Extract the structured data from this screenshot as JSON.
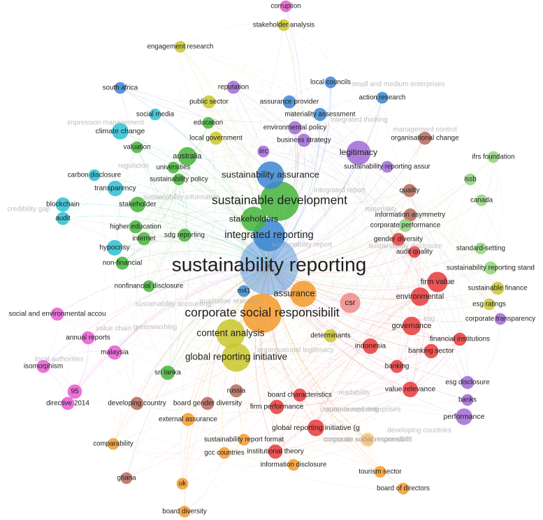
{
  "clusters": {
    "red": "#e8383a",
    "green": "#45b43a",
    "blue": "#3b86d2",
    "yellow": "#c9c72b",
    "purple": "#a06ad6",
    "cyan": "#2cbfd2",
    "orange": "#f39a2c",
    "brown": "#b5685a",
    "pink": "#e85bd2",
    "lightgreen": "#8fd37a",
    "salmon": "#f08a8a",
    "teal": "#4aa6a6"
  },
  "hub": "sustainability reporting",
  "network": {
    "nodes": [
      {
        "id": "sustainability reporting",
        "cluster": "blue",
        "weight": 1.0
      },
      {
        "id": "sustainable development",
        "cluster": "green",
        "weight": 0.45
      },
      {
        "id": "corporate social responsibilit",
        "cluster": "orange",
        "weight": 0.45
      },
      {
        "id": "integrated reporting",
        "cluster": "blue",
        "weight": 0.3
      },
      {
        "id": "sustainability assurance",
        "cluster": "blue",
        "weight": 0.22
      },
      {
        "id": "content analysis",
        "cluster": "yellow",
        "weight": 0.24
      },
      {
        "id": "global reporting initiative",
        "cluster": "yellow",
        "weight": 0.24
      },
      {
        "id": "assurance",
        "cluster": "orange",
        "weight": 0.2
      },
      {
        "id": "stakeholders",
        "cluster": "green",
        "weight": 0.18
      },
      {
        "id": "legitimacy",
        "cluster": "purple",
        "weight": 0.17
      },
      {
        "id": "firm value",
        "cluster": "red",
        "weight": 0.12
      },
      {
        "id": "environmental",
        "cluster": "red",
        "weight": 0.1
      },
      {
        "id": "governance",
        "cluster": "red",
        "weight": 0.1
      },
      {
        "id": "csr",
        "cluster": "salmon",
        "weight": 0.12
      },
      {
        "id": "australia",
        "cluster": "green",
        "weight": 0.1
      },
      {
        "id": "climate change",
        "cluster": "cyan",
        "weight": 0.08
      },
      {
        "id": "performance",
        "cluster": "purple",
        "weight": 0.08
      },
      {
        "id": "value relevance",
        "cluster": "red",
        "weight": 0.07
      },
      {
        "id": "indonesia",
        "cluster": "red",
        "weight": 0.07
      },
      {
        "id": "banking sector",
        "cluster": "red",
        "weight": 0.06
      },
      {
        "id": "global reporting initiative (g",
        "cluster": "red",
        "weight": 0.08
      },
      {
        "id": "corporate social responsibilit (2)",
        "label": "corporate social responsibilit",
        "cluster": "orange",
        "weight": 0.06,
        "faded": true
      },
      {
        "id": "stakeholder",
        "cluster": "green",
        "weight": 0.07
      },
      {
        "id": "transparency",
        "cluster": "cyan",
        "weight": 0.07
      },
      {
        "id": "hypocrisy",
        "cluster": "cyan",
        "weight": 0.07
      },
      {
        "id": "blockchain",
        "cluster": "cyan",
        "weight": 0.06
      },
      {
        "id": "audit",
        "cluster": "cyan",
        "weight": 0.05
      },
      {
        "id": "malaysia",
        "cluster": "pink",
        "weight": 0.06
      },
      {
        "id": "sri lanka",
        "cluster": "green",
        "weight": 0.06
      },
      {
        "id": "95",
        "cluster": "pink",
        "weight": 0.06
      },
      {
        "id": "directive 2014",
        "cluster": "pink",
        "weight": 0.05
      },
      {
        "id": "isomorphism",
        "cluster": "pink",
        "weight": 0.05
      },
      {
        "id": "annual reports",
        "cluster": "pink",
        "weight": 0.05
      },
      {
        "id": "social and environmental accou",
        "cluster": "pink",
        "weight": 0.05
      },
      {
        "id": "developing country",
        "cluster": "brown",
        "weight": 0.05
      },
      {
        "id": "board gender diversity",
        "cluster": "brown",
        "weight": 0.05
      },
      {
        "id": "external assurance",
        "cluster": "orange",
        "weight": 0.05
      },
      {
        "id": "firm performance",
        "cluster": "red",
        "weight": 0.06
      },
      {
        "id": "board characteristics",
        "cluster": "red",
        "weight": 0.05
      },
      {
        "id": "russia",
        "cluster": "brown",
        "weight": 0.05
      },
      {
        "id": "institutional theory",
        "cluster": "red",
        "weight": 0.06
      },
      {
        "id": "information disclosure",
        "cluster": "orange",
        "weight": 0.04
      },
      {
        "id": "tourism sector",
        "cluster": "orange",
        "weight": 0.04
      },
      {
        "id": "board of directors",
        "cluster": "orange",
        "weight": 0.04
      },
      {
        "id": "board diversity",
        "cluster": "orange",
        "weight": 0.04
      },
      {
        "id": "uk",
        "cluster": "orange",
        "weight": 0.04
      },
      {
        "id": "ghana",
        "cluster": "brown",
        "weight": 0.04
      },
      {
        "id": "comparability",
        "cluster": "orange",
        "weight": 0.04
      },
      {
        "id": "gcc countries",
        "cluster": "orange",
        "weight": 0.04
      },
      {
        "id": "sustainability report format",
        "cluster": "orange",
        "weight": 0.04
      },
      {
        "id": "banks",
        "cluster": "purple",
        "weight": 0.04
      },
      {
        "id": "esg disclosure",
        "cluster": "purple",
        "weight": 0.05
      },
      {
        "id": "banking",
        "cluster": "red",
        "weight": 0.05
      },
      {
        "id": "financial institutions",
        "cluster": "red",
        "weight": 0.05
      },
      {
        "id": "corporate transparency",
        "cluster": "purple",
        "weight": 0.04
      },
      {
        "id": "esg ratings",
        "cluster": "yellow",
        "weight": 0.04
      },
      {
        "id": "sustainable finance",
        "cluster": "yellow",
        "weight": 0.05
      },
      {
        "id": "sustainability reporting stand",
        "cluster": "lightgreen",
        "weight": 0.05
      },
      {
        "id": "standard-setting",
        "cluster": "lightgreen",
        "weight": 0.04
      },
      {
        "id": "canada",
        "cluster": "lightgreen",
        "weight": 0.04
      },
      {
        "id": "issb",
        "cluster": "lightgreen",
        "weight": 0.04
      },
      {
        "id": "ifrs foundation",
        "cluster": "lightgreen",
        "weight": 0.04
      },
      {
        "id": "organisational change",
        "cluster": "brown",
        "weight": 0.05
      },
      {
        "id": "action research",
        "cluster": "blue",
        "weight": 0.04
      },
      {
        "id": "local councils",
        "cluster": "blue",
        "weight": 0.04
      },
      {
        "id": "quality",
        "cluster": "brown",
        "weight": 0.05
      },
      {
        "id": "information asymmetry",
        "cluster": "brown",
        "weight": 0.05
      },
      {
        "id": "corporate performance",
        "cluster": "lightgreen",
        "weight": 0.05
      },
      {
        "id": "gender diversity",
        "cluster": "red",
        "weight": 0.05
      },
      {
        "id": "audit quality",
        "cluster": "red",
        "weight": 0.04
      },
      {
        "id": "determinants",
        "cluster": "yellow",
        "weight": 0.05
      },
      {
        "id": "corruption",
        "cluster": "pink",
        "weight": 0.04
      },
      {
        "id": "stakeholder analysis",
        "cluster": "yellow",
        "weight": 0.04
      },
      {
        "id": "engagement research",
        "cluster": "yellow",
        "weight": 0.04
      },
      {
        "id": "south africa",
        "cluster": "blue",
        "weight": 0.04
      },
      {
        "id": "reputation",
        "cluster": "purple",
        "weight": 0.05
      },
      {
        "id": "public sector",
        "cluster": "yellow",
        "weight": 0.05
      },
      {
        "id": "assurance provider",
        "cluster": "blue",
        "weight": 0.05
      },
      {
        "id": "materiality assessment",
        "cluster": "blue",
        "weight": 0.05
      },
      {
        "id": "environmental policy",
        "cluster": "purple",
        "weight": 0.05
      },
      {
        "id": "business strategy",
        "cluster": "purple",
        "weight": 0.05
      },
      {
        "id": "iirc",
        "cluster": "purple",
        "weight": 0.04
      },
      {
        "id": "social media",
        "cluster": "cyan",
        "weight": 0.04
      },
      {
        "id": "local government",
        "cluster": "yellow",
        "weight": 0.05
      },
      {
        "id": "valuation",
        "cluster": "green",
        "weight": 0.04
      },
      {
        "id": "carbon disclosure",
        "cluster": "cyan",
        "weight": 0.04
      },
      {
        "id": "higher education",
        "cluster": "green",
        "weight": 0.05
      },
      {
        "id": "internet",
        "cluster": "green",
        "weight": 0.05
      },
      {
        "id": "sdg reporting",
        "cluster": "green",
        "weight": 0.05
      },
      {
        "id": "non-financial",
        "cluster": "green",
        "weight": 0.05
      },
      {
        "id": "nonfinancial disclosure",
        "cluster": "green",
        "weight": 0.04
      },
      {
        "id": "m41",
        "cluster": "blue",
        "weight": 0.04
      },
      {
        "id": "universities",
        "cluster": "green",
        "weight": 0.04
      },
      {
        "id": "sustainability policy",
        "cluster": "green",
        "weight": 0.04
      },
      {
        "id": "education",
        "cluster": "green",
        "weight": 0.04
      },
      {
        "id": "sustainability reporting assur",
        "cluster": "purple",
        "weight": 0.04
      },
      {
        "id": "corporate social responsibilit (3)",
        "label": "corporate social responsibilit",
        "cluster": "orange",
        "weight": 0.04,
        "faded": true
      }
    ],
    "faded_labels": [
      "impression management",
      "regulation",
      "credibility gap",
      "sustainability information",
      "integrated thinking",
      "small and medium enterprises",
      "value chain",
      "sustainability disclosure",
      "local authorities",
      "readability",
      "developing countries",
      "state-owned enterprises",
      "sustainability report",
      "integrated report",
      "qualitative research",
      "esg",
      "organisational legitimacy",
      "greenwashing",
      "materiality",
      "sustainability accounting",
      "management control",
      "corporate reporting"
    ]
  }
}
